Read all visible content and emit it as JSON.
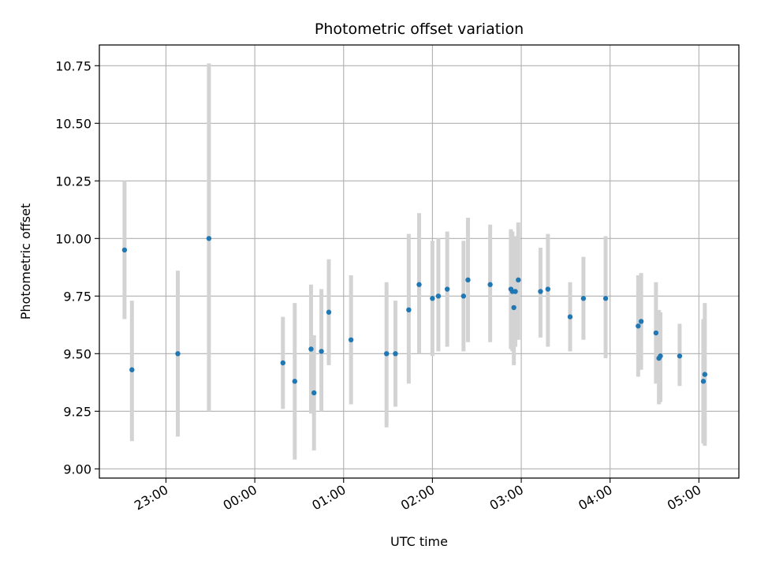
{
  "chart_data": {
    "type": "scatter",
    "title": "Photometric offset variation",
    "xlabel": "UTC time",
    "ylabel": "Photometric offset",
    "x_unit": "UTC time (hh:mm)",
    "xlim": [
      "22:15",
      "05:27"
    ],
    "ylim": [
      8.96,
      10.84
    ],
    "grid": true,
    "x_ticks": [
      "23:00",
      "00:00",
      "01:00",
      "02:00",
      "03:00",
      "04:00",
      "05:00"
    ],
    "y_ticks": [
      "9.00",
      "9.25",
      "9.50",
      "9.75",
      "10.00",
      "10.25",
      "10.50",
      "10.75"
    ],
    "marker_color": "#1f77b4",
    "errorbar_color": "#d3d3d3",
    "points": [
      {
        "x": "22:32",
        "y": 9.95,
        "ylow": 9.65,
        "yhigh": 10.25
      },
      {
        "x": "22:37",
        "y": 9.43,
        "ylow": 9.12,
        "yhigh": 9.73
      },
      {
        "x": "23:08",
        "y": 9.5,
        "ylow": 9.14,
        "yhigh": 9.86
      },
      {
        "x": "23:29",
        "y": 10.0,
        "ylow": 9.25,
        "yhigh": 10.76
      },
      {
        "x": "00:19",
        "y": 9.46,
        "ylow": 9.26,
        "yhigh": 9.66
      },
      {
        "x": "00:27",
        "y": 9.38,
        "ylow": 9.04,
        "yhigh": 9.72
      },
      {
        "x": "00:38",
        "y": 9.52,
        "ylow": 9.24,
        "yhigh": 9.8
      },
      {
        "x": "00:40",
        "y": 9.33,
        "ylow": 9.08,
        "yhigh": 9.58
      },
      {
        "x": "00:45",
        "y": 9.51,
        "ylow": 9.25,
        "yhigh": 9.78
      },
      {
        "x": "00:50",
        "y": 9.68,
        "ylow": 9.45,
        "yhigh": 9.91
      },
      {
        "x": "01:05",
        "y": 9.56,
        "ylow": 9.28,
        "yhigh": 9.84
      },
      {
        "x": "01:29",
        "y": 9.5,
        "ylow": 9.18,
        "yhigh": 9.81
      },
      {
        "x": "01:35",
        "y": 9.5,
        "ylow": 9.27,
        "yhigh": 9.73
      },
      {
        "x": "01:44",
        "y": 9.69,
        "ylow": 9.37,
        "yhigh": 10.02
      },
      {
        "x": "01:51",
        "y": 9.8,
        "ylow": 9.5,
        "yhigh": 10.11
      },
      {
        "x": "02:00",
        "y": 9.74,
        "ylow": 9.49,
        "yhigh": 9.99
      },
      {
        "x": "02:04",
        "y": 9.75,
        "ylow": 9.51,
        "yhigh": 10.0
      },
      {
        "x": "02:10",
        "y": 9.78,
        "ylow": 9.53,
        "yhigh": 10.03
      },
      {
        "x": "02:21",
        "y": 9.75,
        "ylow": 9.51,
        "yhigh": 9.99
      },
      {
        "x": "02:24",
        "y": 9.82,
        "ylow": 9.55,
        "yhigh": 10.09
      },
      {
        "x": "02:39",
        "y": 9.8,
        "ylow": 9.55,
        "yhigh": 10.06
      },
      {
        "x": "02:53",
        "y": 9.78,
        "ylow": 9.52,
        "yhigh": 10.04
      },
      {
        "x": "02:54",
        "y": 9.77,
        "ylow": 9.51,
        "yhigh": 10.03
      },
      {
        "x": "02:55",
        "y": 9.7,
        "ylow": 9.45,
        "yhigh": 9.95
      },
      {
        "x": "02:56",
        "y": 9.77,
        "ylow": 9.53,
        "yhigh": 10.01
      },
      {
        "x": "02:58",
        "y": 9.82,
        "ylow": 9.56,
        "yhigh": 10.07
      },
      {
        "x": "03:13",
        "y": 9.77,
        "ylow": 9.57,
        "yhigh": 9.96
      },
      {
        "x": "03:18",
        "y": 9.78,
        "ylow": 9.53,
        "yhigh": 10.02
      },
      {
        "x": "03:33",
        "y": 9.66,
        "ylow": 9.51,
        "yhigh": 9.81
      },
      {
        "x": "03:42",
        "y": 9.74,
        "ylow": 9.56,
        "yhigh": 9.92
      },
      {
        "x": "03:57",
        "y": 9.74,
        "ylow": 9.48,
        "yhigh": 10.01
      },
      {
        "x": "04:19",
        "y": 9.62,
        "ylow": 9.4,
        "yhigh": 9.84
      },
      {
        "x": "04:21",
        "y": 9.64,
        "ylow": 9.43,
        "yhigh": 9.85
      },
      {
        "x": "04:31",
        "y": 9.59,
        "ylow": 9.37,
        "yhigh": 9.81
      },
      {
        "x": "04:33",
        "y": 9.48,
        "ylow": 9.28,
        "yhigh": 9.69
      },
      {
        "x": "04:34",
        "y": 9.49,
        "ylow": 9.29,
        "yhigh": 9.68
      },
      {
        "x": "04:47",
        "y": 9.49,
        "ylow": 9.36,
        "yhigh": 9.63
      },
      {
        "x": "05:03",
        "y": 9.38,
        "ylow": 9.11,
        "yhigh": 9.65
      },
      {
        "x": "05:04",
        "y": 9.41,
        "ylow": 9.1,
        "yhigh": 9.72
      }
    ]
  }
}
